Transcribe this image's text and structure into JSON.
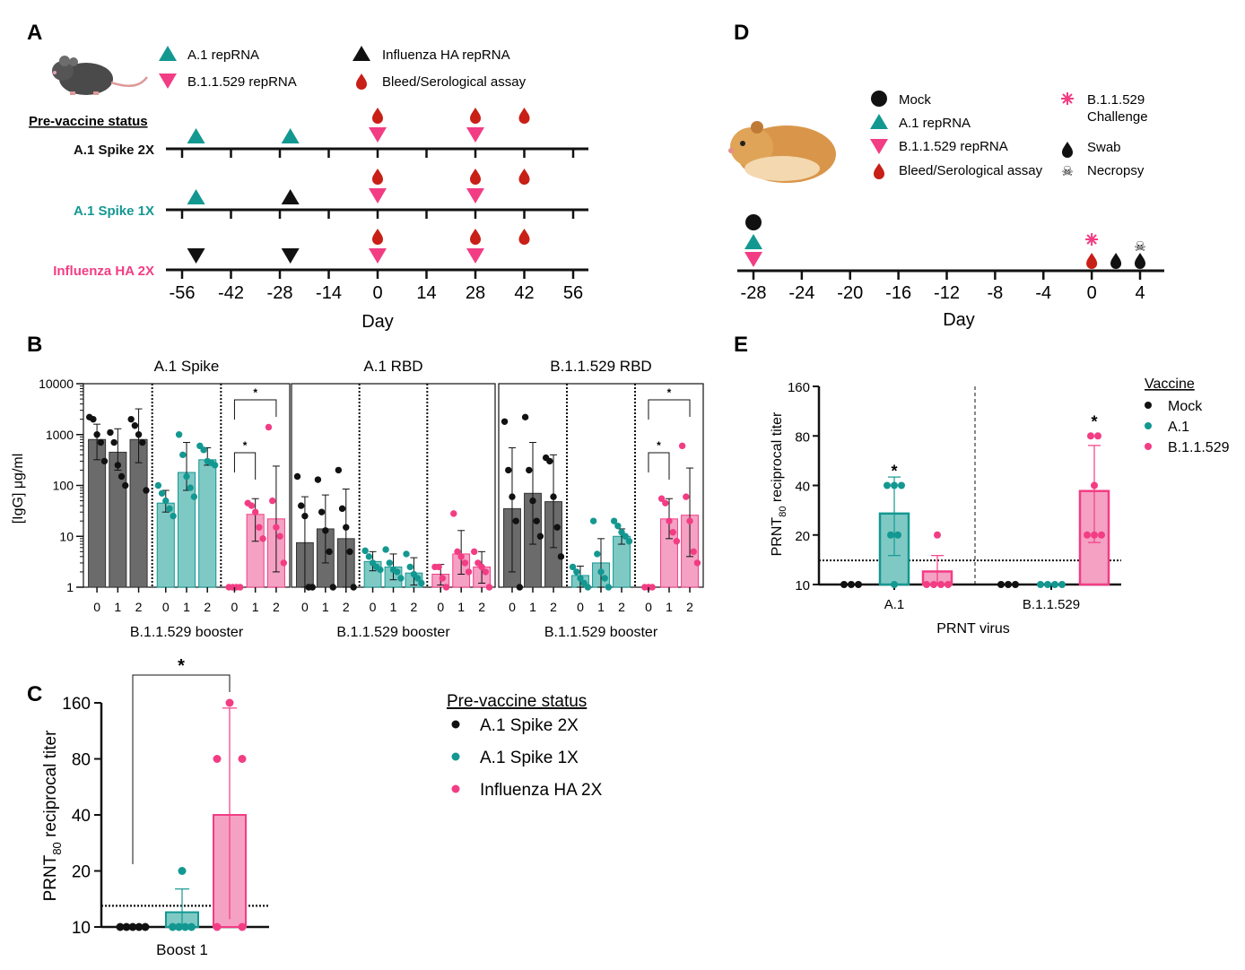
{
  "colors": {
    "black": "#111111",
    "teal": "#139891",
    "pink": "#f23d84",
    "drop": "#c81f16",
    "gray_bar": "#6b6b6b",
    "teal_bar": "#7fc9c5",
    "pink_bar": "#f4a1c4"
  },
  "panelA": {
    "label": "A",
    "legend": {
      "a1": "A.1 repRNA",
      "b11529": "B.1.1.529 repRNA",
      "flu": "Influenza HA repRNA",
      "bleed": "Bleed/Serological assay"
    },
    "status_header": "Pre-vaccine status",
    "rows": [
      {
        "label": "A.1 Spike 2X",
        "color": "#111111",
        "markers": [
          {
            "day": -52,
            "type": "a1"
          },
          {
            "day": -25,
            "type": "a1"
          },
          {
            "day": 0,
            "type": "b11529"
          },
          {
            "day": 28,
            "type": "b11529"
          }
        ],
        "bleeds": [
          0,
          28,
          42
        ]
      },
      {
        "label": "A.1 Spike 1X",
        "color": "#139891",
        "markers": [
          {
            "day": -52,
            "type": "a1"
          },
          {
            "day": -25,
            "type": "flu"
          },
          {
            "day": 0,
            "type": "b11529"
          },
          {
            "day": 28,
            "type": "b11529"
          }
        ],
        "bleeds": [
          0,
          28,
          42
        ]
      },
      {
        "label": "Influenza HA 2X",
        "color": "#f23d84",
        "markers": [
          {
            "day": -52,
            "type": "flu"
          },
          {
            "day": -25,
            "type": "flu"
          },
          {
            "day": 0,
            "type": "b11529"
          },
          {
            "day": 28,
            "type": "b11529"
          }
        ],
        "bleeds": [
          0,
          28,
          42
        ]
      }
    ],
    "ticks": [
      "-56",
      "-42",
      "-28",
      "-14",
      "0",
      "14",
      "28",
      "42",
      "56"
    ],
    "tick_values": [
      -56,
      -42,
      -28,
      -14,
      0,
      14,
      28,
      42,
      56
    ],
    "xlabel": "Day"
  },
  "panelD": {
    "label": "D",
    "legend": {
      "mock": "Mock",
      "a1": "A.1 repRNA",
      "b11529": "B.1.1.529 repRNA",
      "bleed": "Bleed/Serological assay",
      "challenge_1": "B.1.1.529",
      "challenge_2": "Challenge",
      "swab": "Swab",
      "necropsy": "Necropsy"
    },
    "ticks": [
      "-28",
      "-24",
      "-20",
      "-16",
      "-12",
      "-8",
      "-4",
      "0",
      "4"
    ],
    "tick_values": [
      -28,
      -24,
      -20,
      -16,
      -12,
      -8,
      -4,
      0,
      4
    ],
    "xlabel": "Day"
  },
  "chart_data": [
    {
      "panel": "B",
      "type": "bar",
      "ylabel": "[IgG] μg/ml",
      "yscale": "log",
      "ylim": [
        1,
        10000
      ],
      "yticks": [
        "1",
        "10",
        "100",
        "1000",
        "10000"
      ],
      "subplots": [
        {
          "title": "A.1 Spike",
          "xlabel": "B.1.1.529 booster",
          "groups": [
            {
              "name": "A.1 Spike 2X",
              "color": "#111111",
              "categories": [
                "0",
                "1",
                "2"
              ],
              "values": [
                800,
                450,
                800
              ],
              "error_low": [
                320,
                200,
                280
              ],
              "error_high": [
                1600,
                1300,
                3200
              ],
              "points": [
                [
                  2200,
                  2000,
                  1000,
                  700,
                  300
                ],
                [
                  1100,
                  700,
                  250,
                  150,
                  100
                ],
                [
                  2000,
                  1500,
                  1000,
                  700,
                  80
                ]
              ]
            },
            {
              "name": "A.1 Spike 1X",
              "color": "#139891",
              "categories": [
                "0",
                "1",
                "2"
              ],
              "values": [
                45,
                180,
                320
              ],
              "error_low": [
                30,
                80,
                250
              ],
              "error_high": [
                80,
                700,
                550
              ],
              "points": [
                [
                  100,
                  70,
                  50,
                  35,
                  25
                ],
                [
                  1000,
                  400,
                  150,
                  90,
                  60
                ],
                [
                  600,
                  500,
                  300,
                  280,
                  250
                ]
              ]
            },
            {
              "name": "Influenza HA 2X",
              "color": "#f23d84",
              "categories": [
                "0",
                "1",
                "2"
              ],
              "values": [
                1,
                27,
                22
              ],
              "error_low": [
                1,
                8,
                2
              ],
              "error_high": [
                1,
                55,
                240
              ],
              "points": [
                [
                  1,
                  1,
                  1,
                  1
                ],
                [
                  45,
                  40,
                  30,
                  15,
                  9
                ],
                [
                  1400,
                  50,
                  15,
                  10,
                  3
                ]
              ]
            }
          ],
          "significance": [
            {
              "label": "*",
              "groups": [
                2,
                2
              ],
              "from": 0,
              "to": 1
            },
            {
              "label": "*",
              "groups": [
                2,
                2
              ],
              "from": 0,
              "to": 2
            }
          ]
        },
        {
          "title": "A.1 RBD",
          "xlabel": "B.1.1.529 booster",
          "groups": [
            {
              "name": "A.1 Spike 2X",
              "color": "#111111",
              "categories": [
                "0",
                "1",
                "2"
              ],
              "values": [
                7.5,
                14,
                9
              ],
              "error_low": [
                1,
                3,
                1
              ],
              "error_high": [
                60,
                65,
                85
              ],
              "points": [
                [
                  150,
                  40,
                  25,
                  1,
                  1
                ],
                [
                  130,
                  30,
                  13,
                  5,
                  1
                ],
                [
                  200,
                  35,
                  15,
                  5,
                  1
                ]
              ]
            },
            {
              "name": "A.1 Spike 1X",
              "color": "#139891",
              "categories": [
                "0",
                "1",
                "2"
              ],
              "values": [
                3.2,
                2.5,
                1.9
              ],
              "error_low": [
                2.1,
                1.4,
                1.1
              ],
              "error_high": [
                5,
                4.5,
                3.8
              ],
              "points": [
                [
                  5.2,
                  4,
                  3,
                  2.5,
                  2.2
                ],
                [
                  5.5,
                  3,
                  2.2,
                  2,
                  1.5
                ],
                [
                  4.5,
                  2.5,
                  1.8,
                  1.5,
                  1.2
                ]
              ]
            },
            {
              "name": "Influenza HA 2X",
              "color": "#f23d84",
              "categories": [
                "0",
                "1",
                "2"
              ],
              "values": [
                1.8,
                4.5,
                2.5
              ],
              "error_low": [
                1.1,
                1.8,
                1.2
              ],
              "error_high": [
                2.8,
                13,
                5
              ],
              "points": [
                [
                  2.5,
                  2.5,
                  1.5,
                  1
                ],
                [
                  28,
                  5,
                  4,
                  3,
                  2
                ],
                [
                  5,
                  3,
                  2.5,
                  2,
                  1
                ]
              ]
            }
          ],
          "significance": []
        },
        {
          "title": "B.1.1.529 RBD",
          "xlabel": "B.1.1.529 booster",
          "groups": [
            {
              "name": "A.1 Spike 2X",
              "color": "#111111",
              "categories": [
                "0",
                "1",
                "2"
              ],
              "values": [
                35,
                70,
                48
              ],
              "error_low": [
                2,
                7,
                6
              ],
              "error_high": [
                550,
                700,
                400
              ],
              "points": [
                [
                  1800,
                  200,
                  60,
                  20,
                  1
                ],
                [
                  2200,
                  200,
                  50,
                  20,
                  10
                ],
                [
                  350,
                  300,
                  60,
                  15,
                  4
                ]
              ]
            },
            {
              "name": "A.1 Spike 1X",
              "color": "#139891",
              "categories": [
                "0",
                "1",
                "2"
              ],
              "values": [
                1.7,
                3,
                10
              ],
              "error_low": [
                1,
                1,
                7
              ],
              "error_high": [
                2.6,
                9,
                14
              ],
              "points": [
                [
                  2.5,
                  2,
                  1.5,
                  1.2,
                  1
                ],
                [
                  20,
                  4.5,
                  2,
                  1.5,
                  1
                ],
                [
                  20,
                  16,
                  12,
                  10,
                  8
                ]
              ]
            },
            {
              "name": "Influenza HA 2X",
              "color": "#f23d84",
              "categories": [
                "0",
                "1",
                "2"
              ],
              "values": [
                1,
                22,
                26
              ],
              "error_low": [
                1,
                9,
                4
              ],
              "error_high": [
                1,
                55,
                220
              ],
              "points": [
                [
                  1,
                  1,
                  1
                ],
                [
                  55,
                  45,
                  20,
                  12,
                  8
                ],
                [
                  600,
                  60,
                  20,
                  5,
                  3
                ]
              ]
            }
          ],
          "significance": [
            {
              "label": "*",
              "groups": [
                2,
                2
              ],
              "from": 0,
              "to": 1
            },
            {
              "label": "*",
              "groups": [
                2,
                2
              ],
              "from": 0,
              "to": 2
            }
          ]
        }
      ]
    },
    {
      "panel": "C",
      "type": "bar",
      "ylabel_main": "PRNT",
      "ylabel_sub": "80",
      "ylabel_rest": " reciprocal titer",
      "yscale": "log2",
      "yticks": [
        "10",
        "20",
        "40",
        "80",
        "160"
      ],
      "ytick_values": [
        10,
        20,
        40,
        80,
        160
      ],
      "ylim": [
        10,
        160
      ],
      "limit_of_detection": 13,
      "xlabel": "Boost 1",
      "legend_title": "Pre-vaccine status",
      "series": [
        {
          "name": "A.1 Spike 2X",
          "color": "#111111",
          "value": 10,
          "error_low": 10,
          "error_high": 10,
          "points": [
            10,
            10,
            10,
            10,
            10
          ]
        },
        {
          "name": "A.1 Spike 1X",
          "color": "#139891",
          "value": 12,
          "error_low": 10,
          "error_high": 16,
          "points": [
            20,
            10,
            10,
            10,
            10
          ]
        },
        {
          "name": "Influenza HA 2X",
          "color": "#f23d84",
          "value": 40,
          "error_low": 11,
          "error_high": 150,
          "points": [
            160,
            80,
            80,
            10,
            10
          ]
        }
      ],
      "significance": [
        {
          "label": "*",
          "from": 0,
          "to": 2
        }
      ]
    },
    {
      "panel": "E",
      "type": "bar",
      "ylabel_main": "PRNT",
      "ylabel_sub": "80",
      "ylabel_rest": " reciprocal titer",
      "yscale": "log2",
      "yticks": [
        "10",
        "20",
        "40",
        "80",
        "160"
      ],
      "ytick_values": [
        10,
        20,
        40,
        80,
        160
      ],
      "ylim": [
        10,
        160
      ],
      "limit_of_detection": 14,
      "xlabel": "PRNT virus",
      "categories": [
        "A.1",
        "B.1.1.529"
      ],
      "legend_title": "Vaccine",
      "series": [
        {
          "name": "Mock",
          "color": "#111111",
          "values": [
            10,
            10
          ],
          "error_low": [
            10,
            10
          ],
          "error_high": [
            10,
            10
          ],
          "points": [
            [
              10,
              10,
              10
            ],
            [
              10,
              10,
              10
            ]
          ]
        },
        {
          "name": "A.1",
          "color": "#139891",
          "values": [
            27,
            10
          ],
          "error_low": [
            15,
            10
          ],
          "error_high": [
            45,
            10
          ],
          "points": [
            [
              40,
              40,
              40,
              20,
              20,
              10
            ],
            [
              10,
              10,
              10,
              10
            ]
          ]
        },
        {
          "name": "B.1.1.529",
          "color": "#f23d84",
          "values": [
            12,
            37
          ],
          "error_low": [
            10,
            18
          ],
          "error_high": [
            15,
            70
          ],
          "points": [
            [
              20,
              10,
              10,
              10,
              10
            ],
            [
              80,
              80,
              40,
              20,
              20,
              20
            ]
          ]
        }
      ],
      "significance": [
        {
          "label": "*",
          "series": 1,
          "category": 0
        },
        {
          "label": "*",
          "series": 2,
          "category": 1
        }
      ]
    }
  ]
}
